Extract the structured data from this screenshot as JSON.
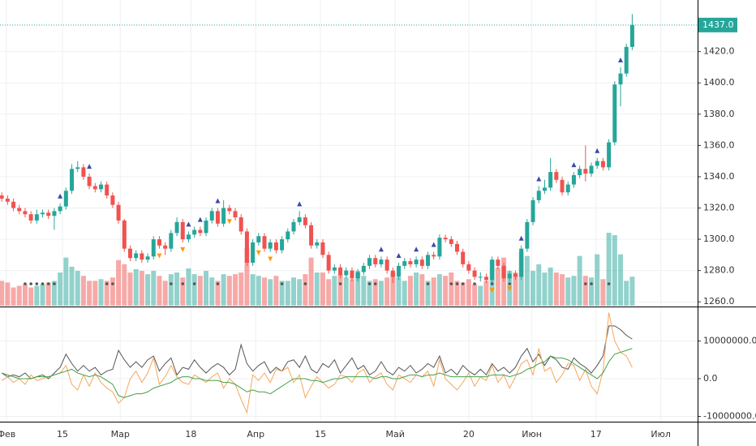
{
  "chart_data": [
    {
      "type": "candlestick",
      "open": [
        1328,
        1326,
        1324,
        1320,
        1318,
        1316,
        1312,
        1316,
        1317,
        1315,
        1318,
        1321,
        1331,
        1345,
        1346,
        1340,
        1334,
        1332,
        1335,
        1328,
        1322,
        1312,
        1294,
        1288,
        1291,
        1287,
        1289,
        1300,
        1296,
        1294,
        1304,
        1311,
        1300,
        1303,
        1306,
        1304,
        1312,
        1318,
        1310,
        1320,
        1318,
        1314,
        1305,
        1285,
        1298,
        1302,
        1294,
        1298,
        1293,
        1300,
        1305,
        1311,
        1314,
        1309,
        1296,
        1298,
        1290,
        1280,
        1282,
        1277,
        1280,
        1275,
        1279,
        1283,
        1288,
        1284,
        1287,
        1280,
        1276,
        1283,
        1286,
        1284,
        1287,
        1283,
        1290,
        1289,
        1301,
        1300,
        1297,
        1292,
        1284,
        1280,
        1276,
        1276,
        1274,
        1287,
        1283,
        1275,
        1278,
        1276,
        1294,
        1311,
        1325,
        1331,
        1333,
        1343,
        1338,
        1330,
        1335,
        1341,
        1345,
        1342,
        1347,
        1350,
        1346,
        1362,
        1399,
        1406,
        1423
      ],
      "high": [
        1330,
        1328,
        1326,
        1322,
        1320,
        1318,
        1319,
        1319,
        1319,
        1320,
        1323,
        1333,
        1348,
        1350,
        1348,
        1342,
        1336,
        1337,
        1337,
        1330,
        1324,
        1313,
        1296,
        1293,
        1293,
        1291,
        1302,
        1302,
        1298,
        1306,
        1314,
        1313,
        1305,
        1308,
        1308,
        1314,
        1320,
        1320,
        1325,
        1322,
        1320,
        1316,
        1307,
        1300,
        1304,
        1304,
        1300,
        1300,
        1302,
        1307,
        1313,
        1318,
        1316,
        1311,
        1300,
        1300,
        1292,
        1284,
        1284,
        1282,
        1282,
        1281,
        1285,
        1290,
        1290,
        1289,
        1289,
        1282,
        1285,
        1288,
        1288,
        1289,
        1289,
        1292,
        1292,
        1303,
        1303,
        1302,
        1299,
        1294,
        1286,
        1282,
        1279,
        1278,
        1289,
        1289,
        1285,
        1280,
        1280,
        1296,
        1313,
        1327,
        1334,
        1338,
        1352,
        1345,
        1340,
        1337,
        1343,
        1347,
        1360,
        1349,
        1352,
        1352,
        1364,
        1401,
        1410,
        1425,
        1444
      ],
      "low": [
        1324,
        1322,
        1318,
        1316,
        1314,
        1310,
        1310,
        1314,
        1313,
        1306,
        1316,
        1319,
        1329,
        1343,
        1338,
        1332,
        1330,
        1330,
        1326,
        1320,
        1310,
        1292,
        1286,
        1286,
        1285,
        1285,
        1287,
        1294,
        1290,
        1292,
        1302,
        1298,
        1298,
        1301,
        1302,
        1302,
        1310,
        1308,
        1308,
        1316,
        1312,
        1303,
        1283,
        1283,
        1296,
        1292,
        1292,
        1291,
        1291,
        1298,
        1303,
        1309,
        1307,
        1294,
        1294,
        1288,
        1278,
        1278,
        1275,
        1275,
        1273,
        1273,
        1277,
        1281,
        1282,
        1282,
        1278,
        1272,
        1274,
        1281,
        1282,
        1282,
        1281,
        1281,
        1287,
        1287,
        1298,
        1295,
        1290,
        1282,
        1278,
        1274,
        1273,
        1272,
        1272,
        1281,
        1273,
        1273,
        1274,
        1274,
        1292,
        1309,
        1323,
        1329,
        1331,
        1336,
        1328,
        1328,
        1333,
        1339,
        1337,
        1340,
        1345,
        1344,
        1344,
        1360,
        1385,
        1404,
        1421
      ],
      "close": [
        1326,
        1324,
        1320,
        1318,
        1316,
        1312,
        1316,
        1317,
        1315,
        1318,
        1321,
        1331,
        1345,
        1346,
        1340,
        1334,
        1332,
        1335,
        1328,
        1322,
        1312,
        1294,
        1288,
        1291,
        1287,
        1289,
        1300,
        1296,
        1294,
        1304,
        1311,
        1300,
        1303,
        1306,
        1304,
        1312,
        1318,
        1310,
        1320,
        1318,
        1314,
        1305,
        1285,
        1298,
        1302,
        1294,
        1298,
        1293,
        1300,
        1305,
        1311,
        1314,
        1309,
        1296,
        1298,
        1290,
        1280,
        1282,
        1277,
        1280,
        1275,
        1279,
        1283,
        1288,
        1284,
        1287,
        1280,
        1276,
        1283,
        1286,
        1284,
        1287,
        1283,
        1290,
        1289,
        1301,
        1300,
        1297,
        1292,
        1284,
        1280,
        1276,
        1276,
        1274,
        1287,
        1283,
        1275,
        1278,
        1276,
        1294,
        1311,
        1325,
        1331,
        1333,
        1343,
        1338,
        1330,
        1335,
        1341,
        1345,
        1342,
        1347,
        1350,
        1346,
        1362,
        1399,
        1406,
        1423,
        1437
      ],
      "volume": [
        30,
        28,
        22,
        24,
        26,
        22,
        24,
        26,
        28,
        30,
        40,
        58,
        47,
        42,
        36,
        30,
        30,
        32,
        30,
        34,
        55,
        50,
        40,
        44,
        42,
        38,
        42,
        36,
        30,
        38,
        40,
        34,
        45,
        38,
        36,
        42,
        34,
        30,
        38,
        36,
        38,
        40,
        70,
        38,
        36,
        34,
        32,
        36,
        30,
        30,
        34,
        32,
        38,
        58,
        40,
        40,
        32,
        36,
        38,
        34,
        32,
        42,
        36,
        30,
        32,
        30,
        34,
        40,
        34,
        30,
        36,
        40,
        38,
        30,
        34,
        38,
        36,
        40,
        30,
        28,
        32,
        26,
        24,
        30,
        55,
        46,
        58,
        42,
        40,
        65,
        60,
        42,
        50,
        40,
        46,
        40,
        38,
        34,
        36,
        60,
        36,
        34,
        62,
        32,
        88,
        85,
        62,
        30,
        35
      ],
      "up_color": "#26a69a",
      "down_color": "#ef5350",
      "up_markers": [
        10,
        15,
        32,
        34,
        37,
        51,
        65,
        68,
        71,
        74,
        89,
        92,
        98,
        102,
        106
      ],
      "up_marker_color": "#3949ab",
      "down_markers": [
        27,
        31,
        39,
        44,
        46,
        84,
        87
      ],
      "down_marker_color": "#ff9800",
      "dot_markers": [
        4,
        5,
        6,
        7,
        8,
        9,
        18,
        19,
        29,
        31,
        33,
        37,
        48,
        52,
        58,
        63,
        64,
        73,
        77,
        78,
        79,
        81,
        84,
        87,
        100,
        101,
        104
      ],
      "dot_marker_color": "#555555",
      "last_price": {
        "value": 1437,
        "label": "1437.0"
      },
      "last_price_color": "#26a69a",
      "xlim": [
        -0.3,
        119.2
      ],
      "ylim": [
        1257,
        1453
      ],
      "yticks": [
        {
          "value": 1260,
          "label": "1260.0"
        },
        {
          "value": 1280,
          "label": "1280.0"
        },
        {
          "value": 1300,
          "label": "1300.0"
        },
        {
          "value": 1320,
          "label": "1320.0"
        },
        {
          "value": 1340,
          "label": "1340.0"
        },
        {
          "value": 1360,
          "label": "1360.0"
        },
        {
          "value": 1380,
          "label": "1380.0"
        },
        {
          "value": 1400,
          "label": "1400.0"
        },
        {
          "value": 1420,
          "label": "1420.0"
        }
      ],
      "grid": true
    },
    {
      "type": "line",
      "series": [
        {
          "color": "#555555",
          "values": [
            1500000,
            500000,
            1000000,
            500000,
            1500000,
            0,
            500000,
            1000000,
            0,
            1500000,
            3000000,
            6500000,
            4000000,
            2000000,
            3500000,
            2000000,
            3000000,
            1000000,
            2000000,
            2500000,
            7500000,
            5000000,
            3000000,
            4500000,
            3000000,
            5000000,
            6000000,
            2000000,
            4000000,
            5500000,
            1000000,
            3000000,
            2500000,
            5000000,
            3000000,
            1500000,
            3000000,
            4000000,
            3000000,
            1000000,
            2500000,
            9000000,
            4000000,
            2000000,
            3500000,
            4500000,
            1500000,
            3000000,
            2000000,
            4500000,
            5000000,
            3000000,
            6000000,
            2500000,
            1500000,
            4000000,
            3000000,
            5000000,
            1500000,
            3500000,
            5500000,
            2500000,
            3500000,
            1000000,
            2000000,
            4500000,
            2000000,
            1000000,
            3000000,
            2000000,
            3500000,
            1500000,
            2500000,
            4000000,
            3000000,
            6000000,
            1500000,
            2500000,
            1000000,
            3500000,
            2000000,
            1000000,
            2500000,
            1000000,
            4000000,
            2000000,
            3000000,
            1500000,
            3000000,
            6000000,
            8000000,
            4500000,
            6500000,
            3500000,
            6000000,
            5000000,
            3000000,
            2500000,
            5500000,
            4000000,
            3000000,
            1500000,
            3500000,
            6000000,
            14000000,
            14000000,
            13000000,
            11500000,
            10500000
          ]
        },
        {
          "color": "#f7a65a",
          "values": [
            -500000,
            500000,
            -1000000,
            0,
            -1500000,
            1000000,
            -500000,
            0,
            500000,
            1000000,
            1500000,
            3500000,
            -1500000,
            -3000000,
            1000000,
            -2000000,
            1500000,
            -1000000,
            -2500000,
            -3500000,
            -6500000,
            -5000000,
            0,
            2000000,
            -1000000,
            1500000,
            5500000,
            -1500000,
            500000,
            3500000,
            500000,
            -1000000,
            -1500000,
            1000000,
            0,
            -1000000,
            500000,
            1500000,
            -2500000,
            0,
            -1500000,
            -5500000,
            -9000000,
            1000000,
            -500000,
            1500000,
            -1000000,
            2500000,
            2000000,
            3000000,
            -1000000,
            1000000,
            -5000000,
            -2000000,
            500000,
            -1000000,
            -2500000,
            -1500000,
            1000000,
            500000,
            -1000000,
            1500000,
            2500000,
            -1000000,
            500000,
            1500000,
            -1500000,
            -3000000,
            1000000,
            0,
            -1000000,
            1000000,
            500000,
            2000000,
            -2000000,
            5000000,
            0,
            -1500000,
            -3000000,
            -1000000,
            1500000,
            -2000000,
            500000,
            -500000,
            3500000,
            -1000000,
            1000000,
            -2500000,
            500000,
            4000000,
            5000000,
            1000000,
            8000000,
            2000000,
            3000000,
            -1000000,
            1000000,
            4000000,
            3500000,
            -500000,
            2500000,
            -2000000,
            -4000000,
            2000000,
            17500000,
            10000000,
            7000000,
            6000000,
            3000000
          ]
        },
        {
          "color": "#43a047",
          "values": [
            1500000,
            1000000,
            500000,
            0,
            0,
            0,
            500000,
            500000,
            500000,
            1000000,
            1500000,
            2000000,
            2500000,
            1500000,
            1000000,
            500000,
            1000000,
            500000,
            -500000,
            -1500000,
            -4500000,
            -5000000,
            -4500000,
            -4000000,
            -4000000,
            -3500000,
            -2500000,
            -2000000,
            -1500000,
            -1000000,
            0,
            500000,
            500000,
            0,
            0,
            -500000,
            -500000,
            -500000,
            -1000000,
            -1000000,
            -1500000,
            -2500000,
            -3500000,
            -3000000,
            -3500000,
            -3500000,
            -4000000,
            -3000000,
            -2000000,
            -1000000,
            0,
            0,
            0,
            -500000,
            -500000,
            -1000000,
            -500000,
            0,
            0,
            500000,
            500000,
            500000,
            500000,
            500000,
            0,
            500000,
            500000,
            0,
            0,
            500000,
            1000000,
            1000000,
            500000,
            1000000,
            1000000,
            1500000,
            1000000,
            500000,
            500000,
            500000,
            500000,
            500000,
            500000,
            500000,
            1000000,
            1000000,
            1000000,
            500000,
            1000000,
            1500000,
            2500000,
            3000000,
            4000000,
            4500000,
            6000000,
            5500000,
            5500000,
            5000000,
            4000000,
            3000000,
            2000000,
            1000000,
            0,
            1500000,
            4500000,
            6500000,
            7000000,
            7500000,
            8000000
          ]
        }
      ],
      "xlim": [
        -0.3,
        119.2
      ],
      "xticks": [
        {
          "value": 0.8,
          "label": "Фев"
        },
        {
          "value": 10.4,
          "label": "15"
        },
        {
          "value": 20.3,
          "label": "Мар"
        },
        {
          "value": 32.4,
          "label": "18"
        },
        {
          "value": 43.5,
          "label": "Апр"
        },
        {
          "value": 54.6,
          "label": "15"
        },
        {
          "value": 67.4,
          "label": "Май"
        },
        {
          "value": 80,
          "label": "20"
        },
        {
          "value": 90.8,
          "label": "Июн"
        },
        {
          "value": 101.8,
          "label": "17"
        },
        {
          "value": 112.9,
          "label": "Июл"
        }
      ],
      "ylim": [
        -11400000,
        18700000
      ],
      "yticks": [
        {
          "value": -10000000,
          "label": "-10000000.0"
        },
        {
          "value": 0,
          "label": "0.0"
        },
        {
          "value": 10000000,
          "label": "10000000.0"
        }
      ],
      "grid": true
    }
  ]
}
